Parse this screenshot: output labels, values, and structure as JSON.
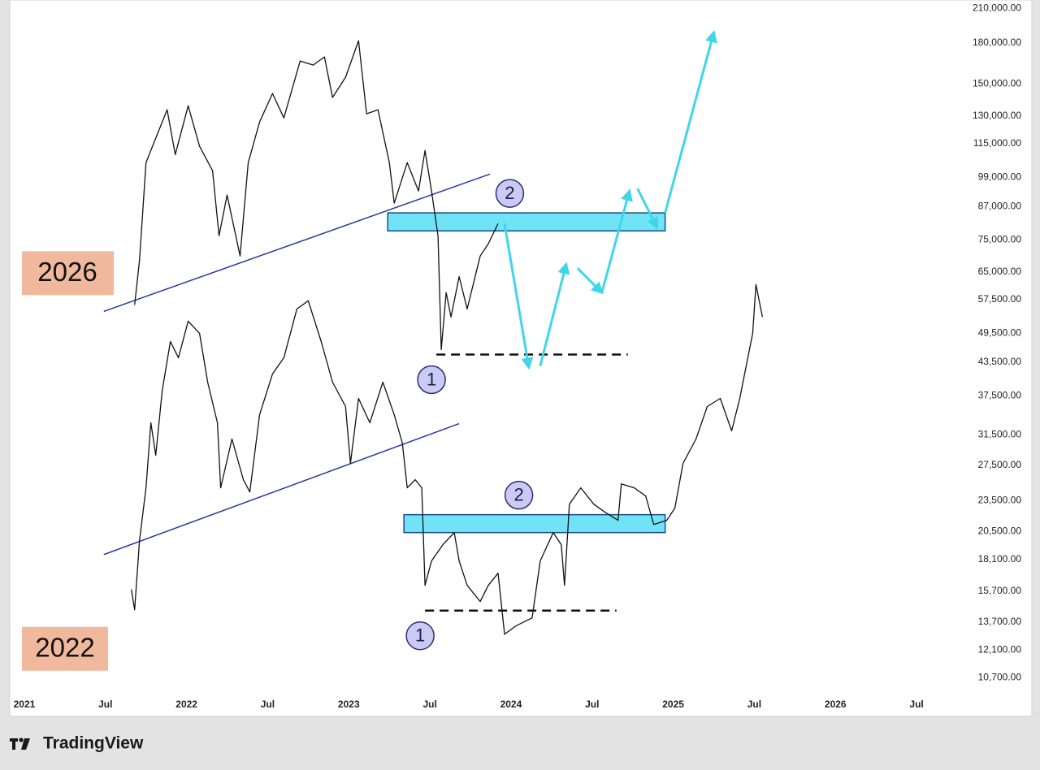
{
  "chart_data": {
    "type": "line",
    "log_y": true,
    "grid": false,
    "xlim": [
      2020.91,
      2026.76
    ],
    "ylim": [
      9000,
      218000
    ],
    "xticks": [
      {
        "value": 2021,
        "label": "2021"
      },
      {
        "value": 2021.5,
        "label": "Jul"
      },
      {
        "value": 2022,
        "label": "2022"
      },
      {
        "value": 2022.5,
        "label": "Jul"
      },
      {
        "value": 2023,
        "label": "2023"
      },
      {
        "value": 2023.5,
        "label": "Jul"
      },
      {
        "value": 2024,
        "label": "2024"
      },
      {
        "value": 2024.5,
        "label": "Jul"
      },
      {
        "value": 2025,
        "label": "2025"
      },
      {
        "value": 2025.5,
        "label": "Jul"
      },
      {
        "value": 2026,
        "label": "2026"
      },
      {
        "value": 2026.5,
        "label": "Jul"
      }
    ],
    "yticks": [
      {
        "value": 210000,
        "label": "210,000.00"
      },
      {
        "value": 180000,
        "label": "180,000.00"
      },
      {
        "value": 150000,
        "label": "150,000.00"
      },
      {
        "value": 130000,
        "label": "130,000.00"
      },
      {
        "value": 115000,
        "label": "115,000.00"
      },
      {
        "value": 99000,
        "label": "99,000.00"
      },
      {
        "value": 87000,
        "label": "87,000.00"
      },
      {
        "value": 75000,
        "label": "75,000.00"
      },
      {
        "value": 65000,
        "label": "65,000.00"
      },
      {
        "value": 57500,
        "label": "57,500.00"
      },
      {
        "value": 49500,
        "label": "49,500.00"
      },
      {
        "value": 43500,
        "label": "43,500.00"
      },
      {
        "value": 37500,
        "label": "37,500.00"
      },
      {
        "value": 31500,
        "label": "31,500.00"
      },
      {
        "value": 27500,
        "label": "27,500.00"
      },
      {
        "value": 23500,
        "label": "23,500.00"
      },
      {
        "value": 20500,
        "label": "20,500.00"
      },
      {
        "value": 18100,
        "label": "18,100.00"
      },
      {
        "value": 15700,
        "label": "15,700.00"
      },
      {
        "value": 13700,
        "label": "13,700.00"
      },
      {
        "value": 12100,
        "label": "12,100.00"
      },
      {
        "value": 10700,
        "label": "10,700.00"
      }
    ],
    "series": [
      {
        "name": "2026",
        "color": "#111111",
        "label_color": "#f0b99d",
        "x": [
          2021.68,
          2021.71,
          2021.75,
          2021.8,
          2021.88,
          2021.93,
          2022.01,
          2022.08,
          2022.16,
          2022.2,
          2022.25,
          2022.33,
          2022.38,
          2022.45,
          2022.53,
          2022.6,
          2022.7,
          2022.78,
          2022.85,
          2022.9,
          2022.98,
          2023.06,
          2023.11,
          2023.18,
          2023.25,
          2023.28,
          2023.36,
          2023.43,
          2023.47,
          2023.51,
          2023.55,
          2023.57,
          2023.6,
          2023.63,
          2023.68,
          2023.73,
          2023.81,
          2023.86,
          2023.92
        ],
        "values": [
          56150,
          68500,
          105700,
          115800,
          133800,
          109600,
          136200,
          113700,
          102000,
          76400,
          91500,
          69800,
          105700,
          126700,
          143800,
          129000,
          166200,
          163200,
          169200,
          141300,
          154600,
          181900,
          131400,
          133800,
          105700,
          88300,
          105700,
          93200,
          111600,
          93200,
          76400,
          46000,
          59300,
          53200,
          63700,
          55140,
          69800,
          73700,
          80600
        ]
      },
      {
        "name": "2022",
        "color": "#111111",
        "label_color": "#f0b99d",
        "x": [
          2021.66,
          2021.68,
          2021.71,
          2021.75,
          2021.78,
          2021.81,
          2021.85,
          2021.9,
          2021.95,
          2022.01,
          2022.08,
          2022.13,
          2022.19,
          2022.21,
          2022.28,
          2022.35,
          2022.39,
          2022.45,
          2022.53,
          2022.6,
          2022.68,
          2022.75,
          2022.83,
          2022.9,
          2022.98,
          2023.01,
          2023.06,
          2023.13,
          2023.21,
          2023.28,
          2023.33,
          2023.36,
          2023.41,
          2023.45,
          2023.47,
          2023.51,
          2023.58,
          2023.65,
          2023.68,
          2023.73,
          2023.81,
          2023.86,
          2023.92,
          2023.96,
          2024.03,
          2024.13,
          2024.18,
          2024.26,
          2024.31,
          2024.33,
          2024.36,
          2024.43,
          2024.51,
          2024.58,
          2024.66,
          2024.68,
          2024.76,
          2024.83,
          2024.88,
          2024.96,
          2025.01,
          2025.06,
          2025.14,
          2025.21,
          2025.29,
          2025.36,
          2025.41,
          2025.45,
          2025.49,
          2025.51,
          2025.55
        ],
        "values": [
          15830,
          14460,
          19670,
          24880,
          33230,
          28750,
          38400,
          47700,
          44390,
          52230,
          49480,
          39820,
          33230,
          24880,
          30920,
          25800,
          24430,
          34450,
          41290,
          44390,
          55140,
          57180,
          47700,
          39820,
          35730,
          27730,
          37040,
          33230,
          39820,
          34450,
          30360,
          24880,
          25800,
          24880,
          16120,
          17970,
          19320,
          20390,
          17970,
          16120,
          15000,
          16120,
          17020,
          12970,
          13460,
          13950,
          17970,
          20390,
          19320,
          16120,
          23140,
          24880,
          23140,
          22320,
          21530,
          25330,
          24880,
          23990,
          21140,
          21530,
          22730,
          27730,
          30920,
          35730,
          37040,
          32050,
          37040,
          42800,
          49480,
          61460,
          53200
        ]
      }
    ],
    "trendlines": [
      {
        "color": "#2b3c9e",
        "x": [
          2021.49,
          2023.87
        ],
        "values": [
          54550,
          100500
        ]
      },
      {
        "color": "#2b3c9e",
        "x": [
          2021.49,
          2023.68
        ],
        "values": [
          18490,
          33110
        ]
      }
    ],
    "zones": [
      {
        "color": "#70e4f6",
        "x": [
          2023.24,
          2024.95
        ],
        "y": [
          78050,
          84550
        ],
        "label": "2"
      },
      {
        "color": "#70e4f6",
        "x": [
          2023.34,
          2024.95
        ],
        "y": [
          20390,
          22080
        ],
        "label": "2"
      }
    ],
    "levels": [
      {
        "color": "#111111",
        "x": [
          2023.54,
          2024.72
        ],
        "value": 45030,
        "label": "1"
      },
      {
        "color": "#111111",
        "x": [
          2023.47,
          2024.65
        ],
        "value": 14410,
        "label": "1"
      }
    ],
    "arrows_color": "#3fd6ea",
    "arrows": [
      {
        "x": [
          2023.96,
          2024.11
        ],
        "values": [
          80600,
          42500
        ]
      },
      {
        "x": [
          2024.18,
          2024.34
        ],
        "values": [
          42800,
          67300
        ]
      },
      {
        "x": [
          2024.41,
          2024.56
        ],
        "values": [
          66100,
          59300
        ]
      },
      {
        "x": [
          2024.56,
          2024.73
        ],
        "values": [
          59300,
          93200
        ]
      },
      {
        "x": [
          2024.78,
          2024.9
        ],
        "values": [
          94200,
          79200
        ]
      },
      {
        "x": [
          2024.95,
          2025.25
        ],
        "values": [
          84550,
          188700
        ]
      }
    ],
    "attribution": "TradingView"
  }
}
